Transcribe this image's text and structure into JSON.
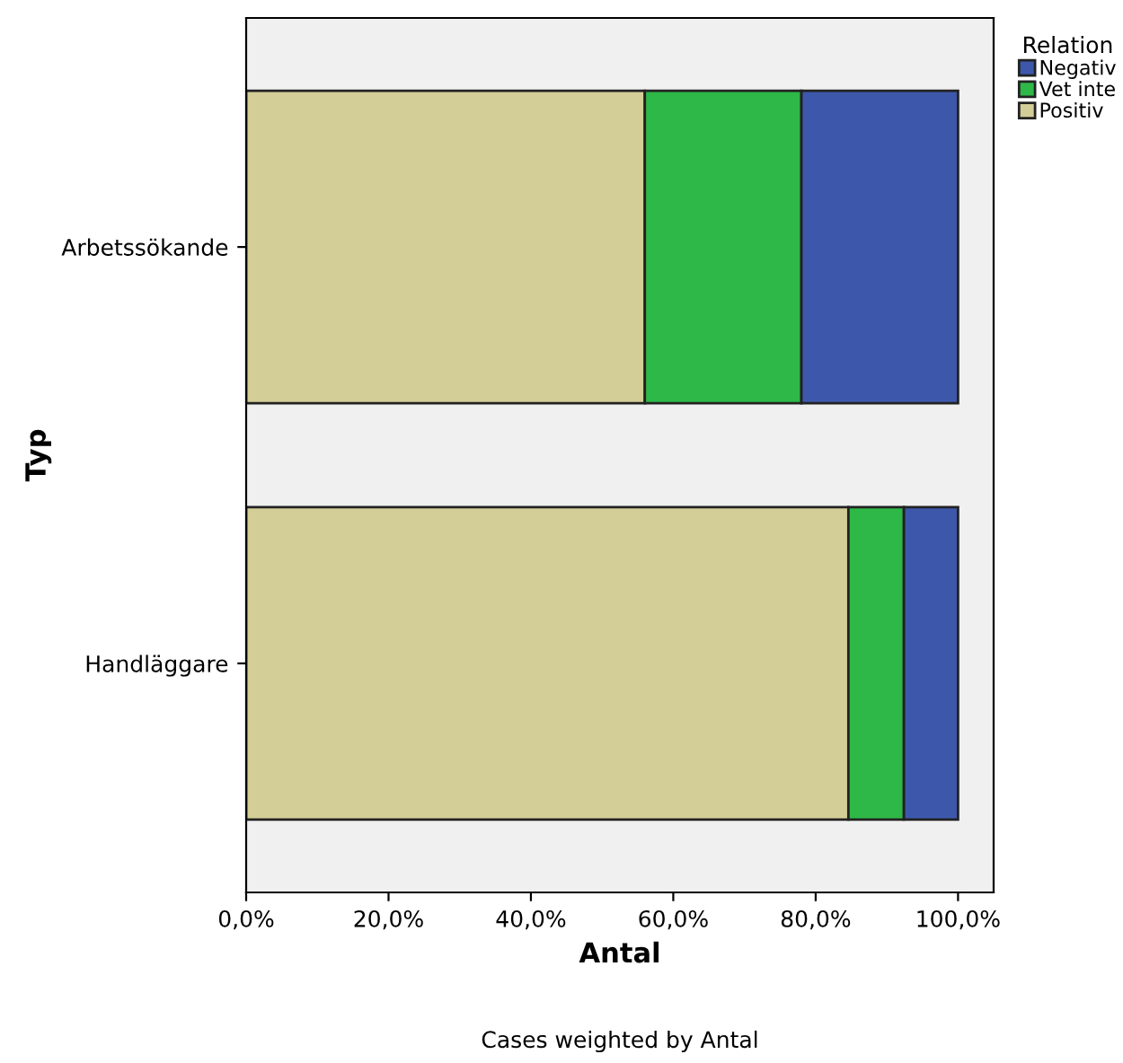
{
  "chart_data": {
    "type": "bar",
    "orientation": "horizontal",
    "stacked": true,
    "categories": [
      "Arbetssökande",
      "Handläggare"
    ],
    "series": [
      {
        "name": "Positiv",
        "color": "#d3ce97",
        "values": [
          56.0,
          84.6
        ]
      },
      {
        "name": "Vet inte",
        "color": "#2eb847",
        "values": [
          22.0,
          7.8
        ]
      },
      {
        "name": "Negativ",
        "color": "#3d58ab",
        "values": [
          22.0,
          7.6
        ]
      }
    ],
    "xlabel": "Antal",
    "ylabel": "Typ",
    "legend_title": "Relation",
    "legend": "top right",
    "xlim": [
      0,
      105
    ],
    "xticks": [
      {
        "value": 0,
        "label": "0,0%"
      },
      {
        "value": 20,
        "label": "20,0%"
      },
      {
        "value": 40,
        "label": "40,0%"
      },
      {
        "value": 60,
        "label": "60,0%"
      },
      {
        "value": 80,
        "label": "80,0%"
      },
      {
        "value": 100,
        "label": "100,0%"
      }
    ],
    "annotations": [
      "Cases weighted by Antal"
    ]
  }
}
